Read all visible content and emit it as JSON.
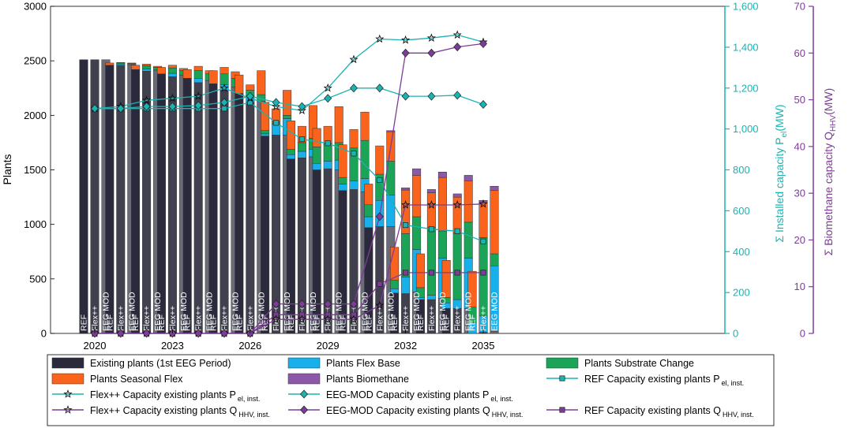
{
  "chart_data": {
    "type": "bar",
    "title": "",
    "xlabel": "",
    "ylabel": "Plants",
    "ylim": [
      0,
      3000
    ],
    "y_ticks": [
      "0",
      "500",
      "1000",
      "1500",
      "2000",
      "2500",
      "3000"
    ],
    "y2label": "Σ Installed capacity P el (MW)",
    "y2label_parts": [
      "Σ Installed capacity P",
      "el",
      "(MW)"
    ],
    "y2lim": [
      0,
      1600
    ],
    "y2_ticks": [
      "0",
      "200",
      "400",
      "600",
      "800",
      "1,000",
      "1,200",
      "1,400",
      "1,600"
    ],
    "y3label": "Σ Biomethane capacity Q HHV (MW)",
    "y3label_parts": [
      "Σ Biomethane capacity Q",
      "HHV",
      "(MW)"
    ],
    "y3lim": [
      0,
      70
    ],
    "y3_ticks": [
      "0",
      "10",
      "20",
      "30",
      "40",
      "50",
      "60",
      "70"
    ],
    "x_tick_years": [
      2020,
      2023,
      2026,
      2029,
      2032,
      2035
    ],
    "x_tick_labels": [
      "2020",
      "2023",
      "2026",
      "2029",
      "2032",
      "2035"
    ],
    "years": [
      2020,
      2021,
      2022,
      2023,
      2024,
      2025,
      2026,
      2027,
      2028,
      2029,
      2030,
      2031,
      2032,
      2033,
      2034,
      2035
    ],
    "scenarios": [
      "REF",
      "Flex++",
      "EEG MOD"
    ],
    "bar_labels": [
      "REF",
      "Flex++",
      "EEG MOD"
    ],
    "stack_components": [
      "existing",
      "flex_base",
      "substrate",
      "seasonal",
      "biomethane"
    ],
    "stacks": [
      {
        "year": 2020,
        "REF": [
          2510,
          0,
          0,
          0,
          0
        ],
        "Flex++": [
          2510,
          0,
          0,
          0,
          0
        ],
        "EEG MOD": [
          2510,
          0,
          0,
          0,
          0
        ]
      },
      {
        "year": 2021,
        "REF": [
          2460,
          0,
          0,
          20,
          0
        ],
        "Flex++": [
          2455,
          10,
          15,
          5,
          0
        ],
        "EEG MOD": [
          2465,
          0,
          10,
          5,
          0
        ]
      },
      {
        "year": 2022,
        "REF": [
          2420,
          0,
          0,
          40,
          0
        ],
        "Flex++": [
          2405,
          20,
          30,
          15,
          0
        ],
        "EEG MOD": [
          2415,
          0,
          25,
          10,
          0
        ]
      },
      {
        "year": 2023,
        "REF": [
          2380,
          0,
          0,
          60,
          0
        ],
        "Flex++": [
          2355,
          30,
          50,
          25,
          0
        ],
        "EEG MOD": [
          2370,
          0,
          40,
          20,
          0
        ]
      },
      {
        "year": 2024,
        "REF": [
          2340,
          0,
          0,
          80,
          0
        ],
        "Flex++": [
          2300,
          40,
          70,
          40,
          0
        ],
        "EEG MOD": [
          2320,
          0,
          60,
          30,
          0
        ]
      },
      {
        "year": 2025,
        "REF": [
          2290,
          0,
          0,
          120,
          0
        ],
        "Flex++": [
          2230,
          50,
          100,
          60,
          0
        ],
        "EEG MOD": [
          2260,
          0,
          80,
          60,
          0
        ]
      },
      {
        "year": 2026,
        "REF": [
          2200,
          0,
          0,
          170,
          0
        ],
        "Flex++": [
          2120,
          60,
          50,
          50,
          0
        ],
        "EEG MOD": [
          2130,
          0,
          60,
          220,
          0
        ]
      },
      {
        "year": 2027,
        "REF": [
          1810,
          20,
          30,
          260,
          0
        ],
        "Flex++": [
          1820,
          100,
          20,
          120,
          0
        ],
        "EEG MOD": [
          1820,
          150,
          30,
          230,
          0
        ]
      },
      {
        "year": 2028,
        "REF": [
          1600,
          40,
          50,
          260,
          0
        ],
        "Flex++": [
          1610,
          60,
          80,
          150,
          0
        ],
        "EEG MOD": [
          1620,
          70,
          100,
          300,
          0
        ]
      },
      {
        "year": 2029,
        "REF": [
          1500,
          60,
          150,
          170,
          0
        ],
        "Flex++": [
          1510,
          70,
          160,
          160,
          0
        ],
        "EEG MOD": [
          1500,
          90,
          160,
          330,
          0
        ]
      },
      {
        "year": 2030,
        "REF": [
          1310,
          60,
          60,
          300,
          0
        ],
        "Flex++": [
          1320,
          80,
          300,
          170,
          0
        ],
        "EEG MOD": [
          1300,
          120,
          350,
          260,
          0
        ]
      },
      {
        "year": 2031,
        "REF": [
          970,
          100,
          110,
          190,
          0
        ],
        "Flex++": [
          980,
          240,
          240,
          260,
          0
        ],
        "EEG MOD": [
          980,
          290,
          310,
          270,
          10
        ]
      },
      {
        "year": 2032,
        "REF": [
          370,
          40,
          80,
          300,
          0
        ],
        "Flex++": [
          365,
          150,
          400,
          400,
          20
        ],
        "EEG MOD": [
          380,
          390,
          300,
          380,
          60
        ]
      },
      {
        "year": 2033,
        "REF": [
          310,
          20,
          90,
          310,
          0
        ],
        "Flex++": [
          310,
          40,
          620,
          320,
          30
        ],
        "EEG MOD": [
          320,
          370,
          250,
          490,
          50
        ]
      },
      {
        "year": 2034,
        "REF": [
          230,
          50,
          50,
          340,
          0
        ],
        "Flex++": [
          230,
          80,
          610,
          330,
          30
        ],
        "EEG MOD": [
          230,
          460,
          330,
          380,
          50
        ]
      },
      {
        "year": 2035,
        "REF": [
          0,
          100,
          140,
          330,
          0
        ],
        "Flex++": [
          10,
          150,
          720,
          320,
          20
        ],
        "EEG MOD": [
          20,
          600,
          110,
          580,
          40
        ]
      }
    ],
    "series": [
      {
        "name": "REF Capacity existing plants P el, inst.",
        "axis": "pel",
        "marker": "square",
        "color": "#1AB3B3",
        "x": [
          2020,
          2021,
          2022,
          2023,
          2024,
          2025,
          2026,
          2027,
          2028,
          2029,
          2030,
          2031,
          2032,
          2033,
          2034,
          2035
        ],
        "values": [
          1100,
          1100,
          1100,
          1100,
          1100,
          1100,
          1130,
          1030,
          950,
          930,
          880,
          750,
          530,
          510,
          500,
          450
        ]
      },
      {
        "name": "Flex++ Capacity existing plants P el, inst.",
        "axis": "pel",
        "marker": "star",
        "color": "#1AB3B3",
        "x": [
          2020,
          2021,
          2022,
          2023,
          2024,
          2025,
          2026,
          2027,
          2028,
          2029,
          2030,
          2031,
          2032,
          2033,
          2034,
          2035
        ],
        "values": [
          1100,
          1110,
          1140,
          1150,
          1160,
          1200,
          1150,
          1110,
          1090,
          1200,
          1340,
          1440,
          1435,
          1445,
          1460,
          1425
        ]
      },
      {
        "name": "EEG-MOD Capacity existing plants P el, inst.",
        "axis": "pel",
        "marker": "diamond",
        "color": "#1AB3B3",
        "x": [
          2020,
          2021,
          2022,
          2023,
          2024,
          2025,
          2026,
          2027,
          2028,
          2029,
          2030,
          2031,
          2032,
          2033,
          2034,
          2035
        ],
        "values": [
          1100,
          1100,
          1110,
          1110,
          1115,
          1130,
          1160,
          1130,
          1110,
          1150,
          1200,
          1200,
          1160,
          1160,
          1165,
          1120
        ]
      },
      {
        "name": "REF Capacity existing plants Q HHV, inst.",
        "axis": "qhhv",
        "marker": "square",
        "color": "#7D3C98",
        "x": [
          2020,
          2021,
          2022,
          2023,
          2024,
          2025,
          2026,
          2027,
          2028,
          2029,
          2030,
          2031,
          2032,
          2033,
          2034,
          2035
        ],
        "values": [
          0,
          0,
          0,
          0,
          0,
          0,
          0,
          4,
          4,
          4,
          4,
          10.6,
          13,
          13,
          13,
          13
        ]
      },
      {
        "name": "Flex++ Capacity existing plants Q HHV, inst.",
        "axis": "qhhv",
        "marker": "star",
        "color": "#7D3C98",
        "x": [
          2020,
          2021,
          2022,
          2023,
          2024,
          2025,
          2026,
          2027,
          2028,
          2029,
          2030,
          2031,
          2032,
          2033,
          2034,
          2035
        ],
        "values": [
          0,
          0,
          0,
          0,
          0,
          0,
          0,
          3,
          3,
          3,
          3,
          6,
          27.5,
          27.5,
          27.5,
          27.7
        ]
      },
      {
        "name": "EEG-MOD Capacity existing plants Q HHV, inst.",
        "axis": "qhhv",
        "marker": "diamond",
        "color": "#7D3C98",
        "x": [
          2020,
          2021,
          2022,
          2023,
          2024,
          2025,
          2026,
          2027,
          2028,
          2029,
          2030,
          2031,
          2032,
          2033,
          2034,
          2035
        ],
        "values": [
          0,
          0,
          0,
          0,
          0,
          0,
          0,
          6.3,
          6.3,
          6.3,
          6.3,
          25,
          60,
          60,
          61.3,
          62
        ]
      }
    ],
    "colors": {
      "existing_REF": "#2A2A3C",
      "existing_Flex": "#40404F",
      "existing_EEG": "#6B6B78",
      "flex_base": "#17B0EA",
      "substrate": "#1BA458",
      "seasonal": "#F9631C",
      "biomethane": "#8B59A8",
      "pel_axis": "#1AB3B3",
      "qhhv_axis": "#7D3C98"
    },
    "legend": [
      {
        "label": "Existing plants (1st EEG Period)",
        "kind": "patch",
        "color": "#2A2A3C"
      },
      {
        "label": "Plants Flex Base",
        "kind": "patch",
        "color": "#17B0EA"
      },
      {
        "label": "Plants Substrate Change",
        "kind": "patch",
        "color": "#1BA458"
      },
      {
        "label": "Plants Seasonal Flex",
        "kind": "patch",
        "color": "#F9631C"
      },
      {
        "label": "Plants Biomethane",
        "kind": "patch",
        "color": "#8B59A8"
      },
      {
        "label": "REF Capacity existing plants P",
        "sub": "el, inst.",
        "kind": "line",
        "marker": "square",
        "color": "#1AB3B3"
      },
      {
        "label": "Flex++ Capacity existing plants P",
        "sub": "el, inst.",
        "kind": "line",
        "marker": "star",
        "color": "#1AB3B3"
      },
      {
        "label": "EEG-MOD Capacity existing plants P",
        "sub": "el, inst.",
        "kind": "line",
        "marker": "diamond",
        "color": "#1AB3B3"
      },
      {
        "label": "",
        "kind": "blank"
      },
      {
        "label": "Flex++ Capacity existing plants Q",
        "sub": "HHV, inst.",
        "kind": "line",
        "marker": "star",
        "color": "#7D3C98"
      },
      {
        "label": "EEG-MOD Capacity existing plants Q",
        "sub": "HHV, inst.",
        "kind": "line",
        "marker": "diamond",
        "color": "#7D3C98"
      },
      {
        "label": "REF Capacity existing plants Q",
        "sub": "HHV, inst.",
        "kind": "line",
        "marker": "square",
        "color": "#7D3C98"
      }
    ]
  }
}
